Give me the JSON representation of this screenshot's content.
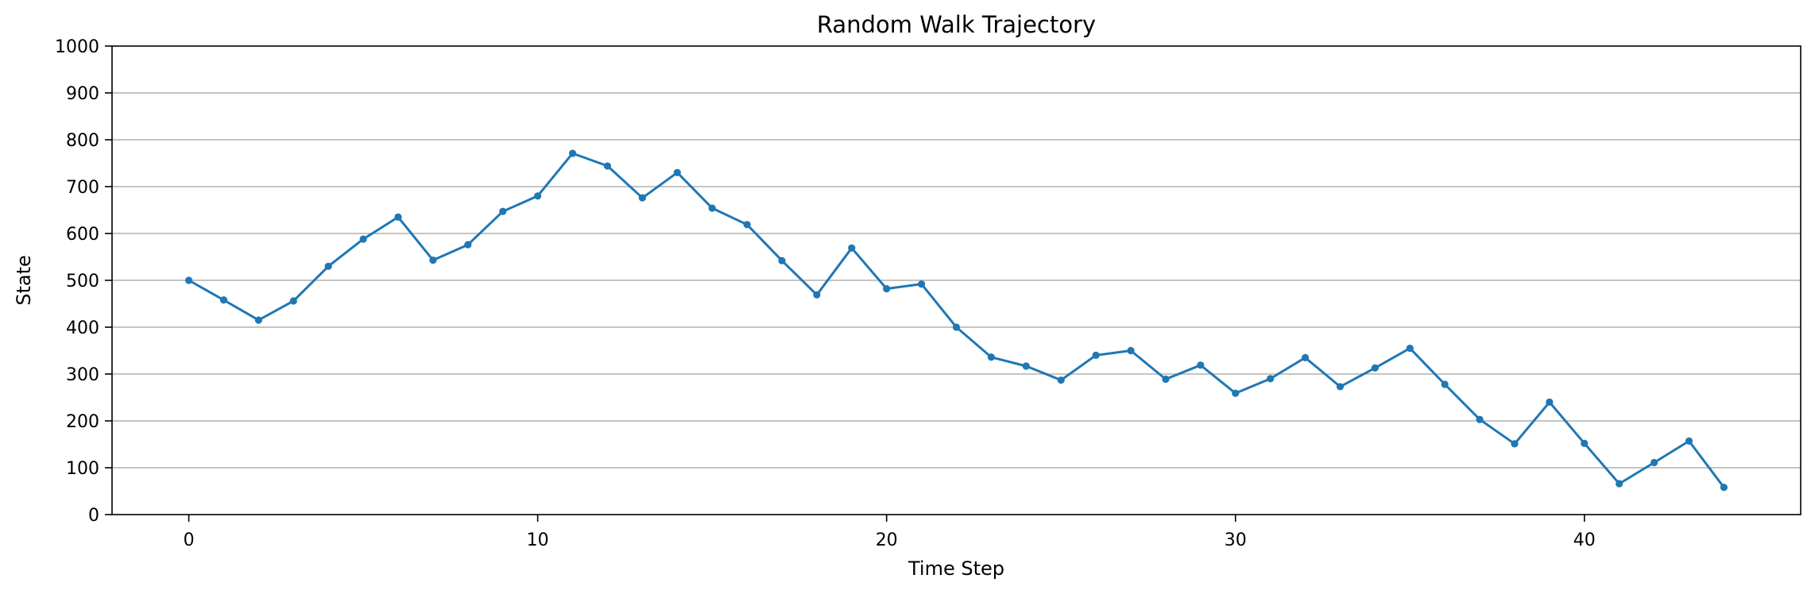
{
  "chart_data": {
    "type": "line",
    "title": "Random Walk Trajectory",
    "xlabel": "Time Step",
    "ylabel": "State",
    "xlim": [
      -2.2,
      46.2
    ],
    "ylim": [
      0,
      1000
    ],
    "xticks": [
      0,
      10,
      20,
      30,
      40
    ],
    "yticks": [
      0,
      100,
      200,
      300,
      400,
      500,
      600,
      700,
      800,
      900,
      1000
    ],
    "grid": "horizontal",
    "colors": {
      "line": "#1f77b4",
      "grid": "#b0b0b0",
      "axis": "#000000"
    },
    "series": [
      {
        "x": [
          0,
          1,
          2,
          3,
          4,
          5,
          6,
          7,
          8,
          9,
          10,
          11,
          12,
          13,
          14,
          15,
          16,
          17,
          18,
          19,
          20,
          21,
          22,
          23,
          24,
          25,
          26,
          27,
          28,
          29,
          30,
          31,
          32,
          33,
          34,
          35,
          36,
          37,
          38,
          39,
          40,
          41,
          42,
          43,
          44
        ],
        "values": [
          500,
          458,
          415,
          456,
          530,
          588,
          635,
          543,
          576,
          647,
          680,
          771,
          744,
          676,
          730,
          654,
          619,
          542,
          469,
          569,
          482,
          492,
          400,
          336,
          317,
          287,
          340,
          350,
          289,
          319,
          259,
          290,
          335,
          273,
          313,
          355,
          278,
          203,
          151,
          240,
          152,
          66,
          111,
          157,
          58
        ]
      }
    ]
  }
}
